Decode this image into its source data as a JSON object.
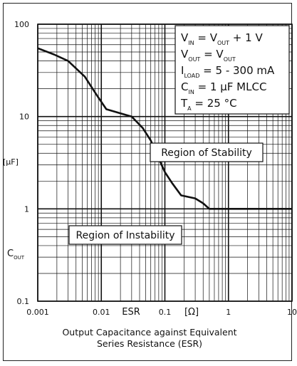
{
  "chart_data": {
    "type": "line",
    "xscale": "log",
    "yscale": "log",
    "xlim": [
      0.001,
      10
    ],
    "ylim": [
      0.1,
      100
    ],
    "x_ticks": [
      "0.001",
      "0.01",
      "0.1",
      "1",
      "10"
    ],
    "y_ticks": [
      "0.1",
      "1",
      "10",
      "100"
    ],
    "xlabel_name": "ESR",
    "xlabel_unit": "[Ω]",
    "ylabel_name_main": "C",
    "ylabel_name_sub": "OUT",
    "ylabel_unit": "[µF]",
    "caption_lines": [
      "Output Capacitance against Equivalent",
      "Series Resistance (ESR)"
    ],
    "regions": {
      "stability": "Region of Stability",
      "instability": "Region of Instability"
    },
    "conditions": [
      {
        "parts": [
          [
            "V",
            ""
          ],
          [
            "IN",
            "sub"
          ],
          [
            " = V",
            ""
          ],
          [
            "OUT",
            "sub"
          ],
          [
            " + 1 V",
            ""
          ]
        ]
      },
      {
        "parts": [
          [
            "V",
            ""
          ],
          [
            "OUT",
            "sub"
          ],
          [
            " = V",
            ""
          ],
          [
            "OUT",
            "sub"
          ]
        ]
      },
      {
        "parts": [
          [
            "I",
            ""
          ],
          [
            "LOAD",
            "sub"
          ],
          [
            " = 5 - 300 mA",
            ""
          ]
        ]
      },
      {
        "parts": [
          [
            "C",
            ""
          ],
          [
            "IN",
            "sub"
          ],
          [
            " = 1 µF MLCC",
            ""
          ]
        ]
      },
      {
        "parts": [
          [
            "T",
            ""
          ],
          [
            "A",
            "sub"
          ],
          [
            " = 25 °C",
            ""
          ]
        ]
      }
    ],
    "grid": true,
    "series": [
      {
        "x": [
          0.001,
          0.0018,
          0.003,
          0.0055,
          0.0085,
          0.012,
          0.03,
          0.045,
          0.06,
          0.08,
          0.1,
          0.13,
          0.18,
          0.3,
          0.4,
          0.5,
          10
        ],
        "y": [
          55,
          47,
          40,
          27,
          17,
          12,
          10,
          7.5,
          5.5,
          3.5,
          2.5,
          1.9,
          1.4,
          1.3,
          1.15,
          1.0,
          1.0
        ]
      }
    ]
  }
}
